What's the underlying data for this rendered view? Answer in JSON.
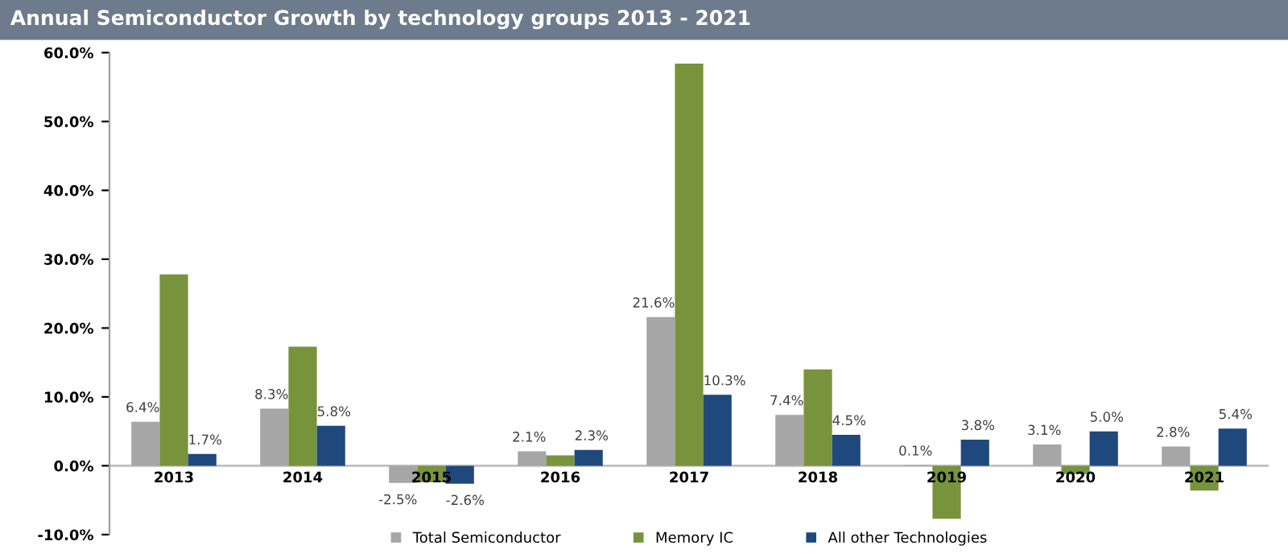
{
  "chart_data": {
    "type": "bar",
    "title": "Annual Semiconductor Growth by technology groups 2013 - 2021",
    "categories": [
      "2013",
      "2014",
      "2015",
      "2016",
      "2017",
      "2018",
      "2019",
      "2020",
      "2021"
    ],
    "series": [
      {
        "name": "Total Semiconductor",
        "color": "#a6a6a6",
        "values": [
          6.4,
          8.3,
          -2.5,
          2.1,
          21.6,
          7.4,
          0.1,
          3.1,
          2.8
        ],
        "value_labels": [
          "6.4%",
          "8.3%",
          "-2.5%",
          "2.1%",
          "21.6%",
          "7.4%",
          "0.1%",
          "3.1%",
          "2.8%"
        ]
      },
      {
        "name": "Memory IC",
        "color": "#77933c",
        "values": [
          27.8,
          17.3,
          -2.4,
          1.5,
          58.4,
          14.0,
          -7.7,
          -1.2,
          -3.6
        ]
      },
      {
        "name": "All other Technologies",
        "color": "#1f497d",
        "values": [
          1.7,
          5.8,
          -2.6,
          2.3,
          10.3,
          4.5,
          3.8,
          5.0,
          5.4
        ],
        "value_labels": [
          "1.7%",
          "5.8%",
          "-2.6%",
          "2.3%",
          "10.3%",
          "4.5%",
          "3.8%",
          "5.0%",
          "5.4%"
        ]
      }
    ],
    "ylim": [
      -10,
      60
    ],
    "yticks": [
      {
        "value": -10,
        "label": "-10.0%"
      },
      {
        "value": 0,
        "label": "0.0%"
      },
      {
        "value": 10,
        "label": "10.0%"
      },
      {
        "value": 20,
        "label": "20.0%"
      },
      {
        "value": 30,
        "label": "30.0%"
      },
      {
        "value": 40,
        "label": "40.0%"
      },
      {
        "value": 50,
        "label": "50.0%"
      },
      {
        "value": 60,
        "label": "60.0%"
      }
    ],
    "grid": false,
    "legend": "bottom"
  }
}
